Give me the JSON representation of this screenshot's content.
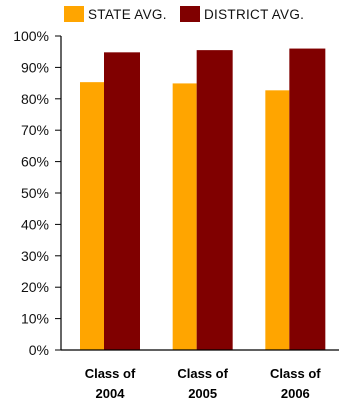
{
  "chart_data": {
    "type": "bar",
    "categories": [
      [
        "Class of",
        "2004"
      ],
      [
        "Class of",
        "2005"
      ],
      [
        "Class of",
        "2006"
      ]
    ],
    "series": [
      {
        "name": "STATE AVG.",
        "color": "#FFA500",
        "values": [
          85.3,
          84.9,
          82.7
        ]
      },
      {
        "name": "DISTRICT AVG.",
        "color": "#800000",
        "values": [
          94.8,
          95.5,
          96.0
        ]
      }
    ],
    "yticks": [
      "0%",
      "10%",
      "20%",
      "30%",
      "40%",
      "50%",
      "60%",
      "70%",
      "80%",
      "90%",
      "100%"
    ],
    "ylim": [
      0,
      100
    ],
    "grid": false,
    "legend": "top"
  }
}
